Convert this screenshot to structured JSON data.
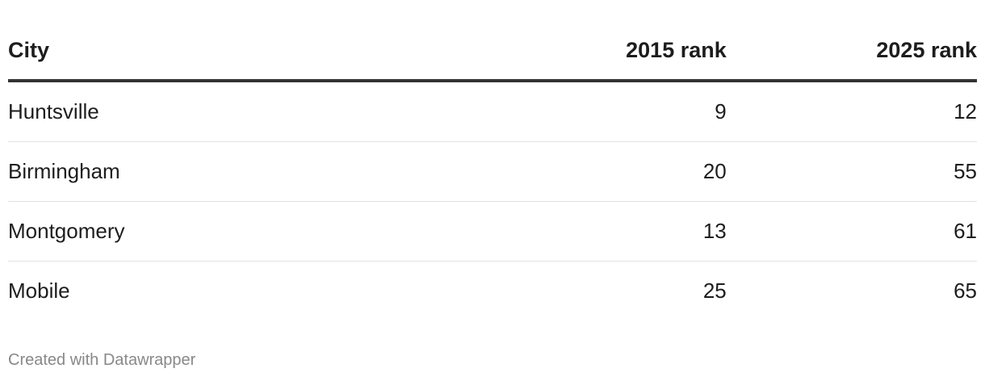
{
  "table": {
    "header": [
      "City",
      "2015 rank",
      "2025 rank"
    ],
    "rows": [
      [
        "Huntsville",
        9,
        12
      ],
      [
        "Birmingham",
        20,
        55
      ],
      [
        "Montgomery",
        13,
        61
      ],
      [
        "Mobile",
        25,
        65
      ]
    ]
  },
  "footer": "Created with Datawrapper"
}
